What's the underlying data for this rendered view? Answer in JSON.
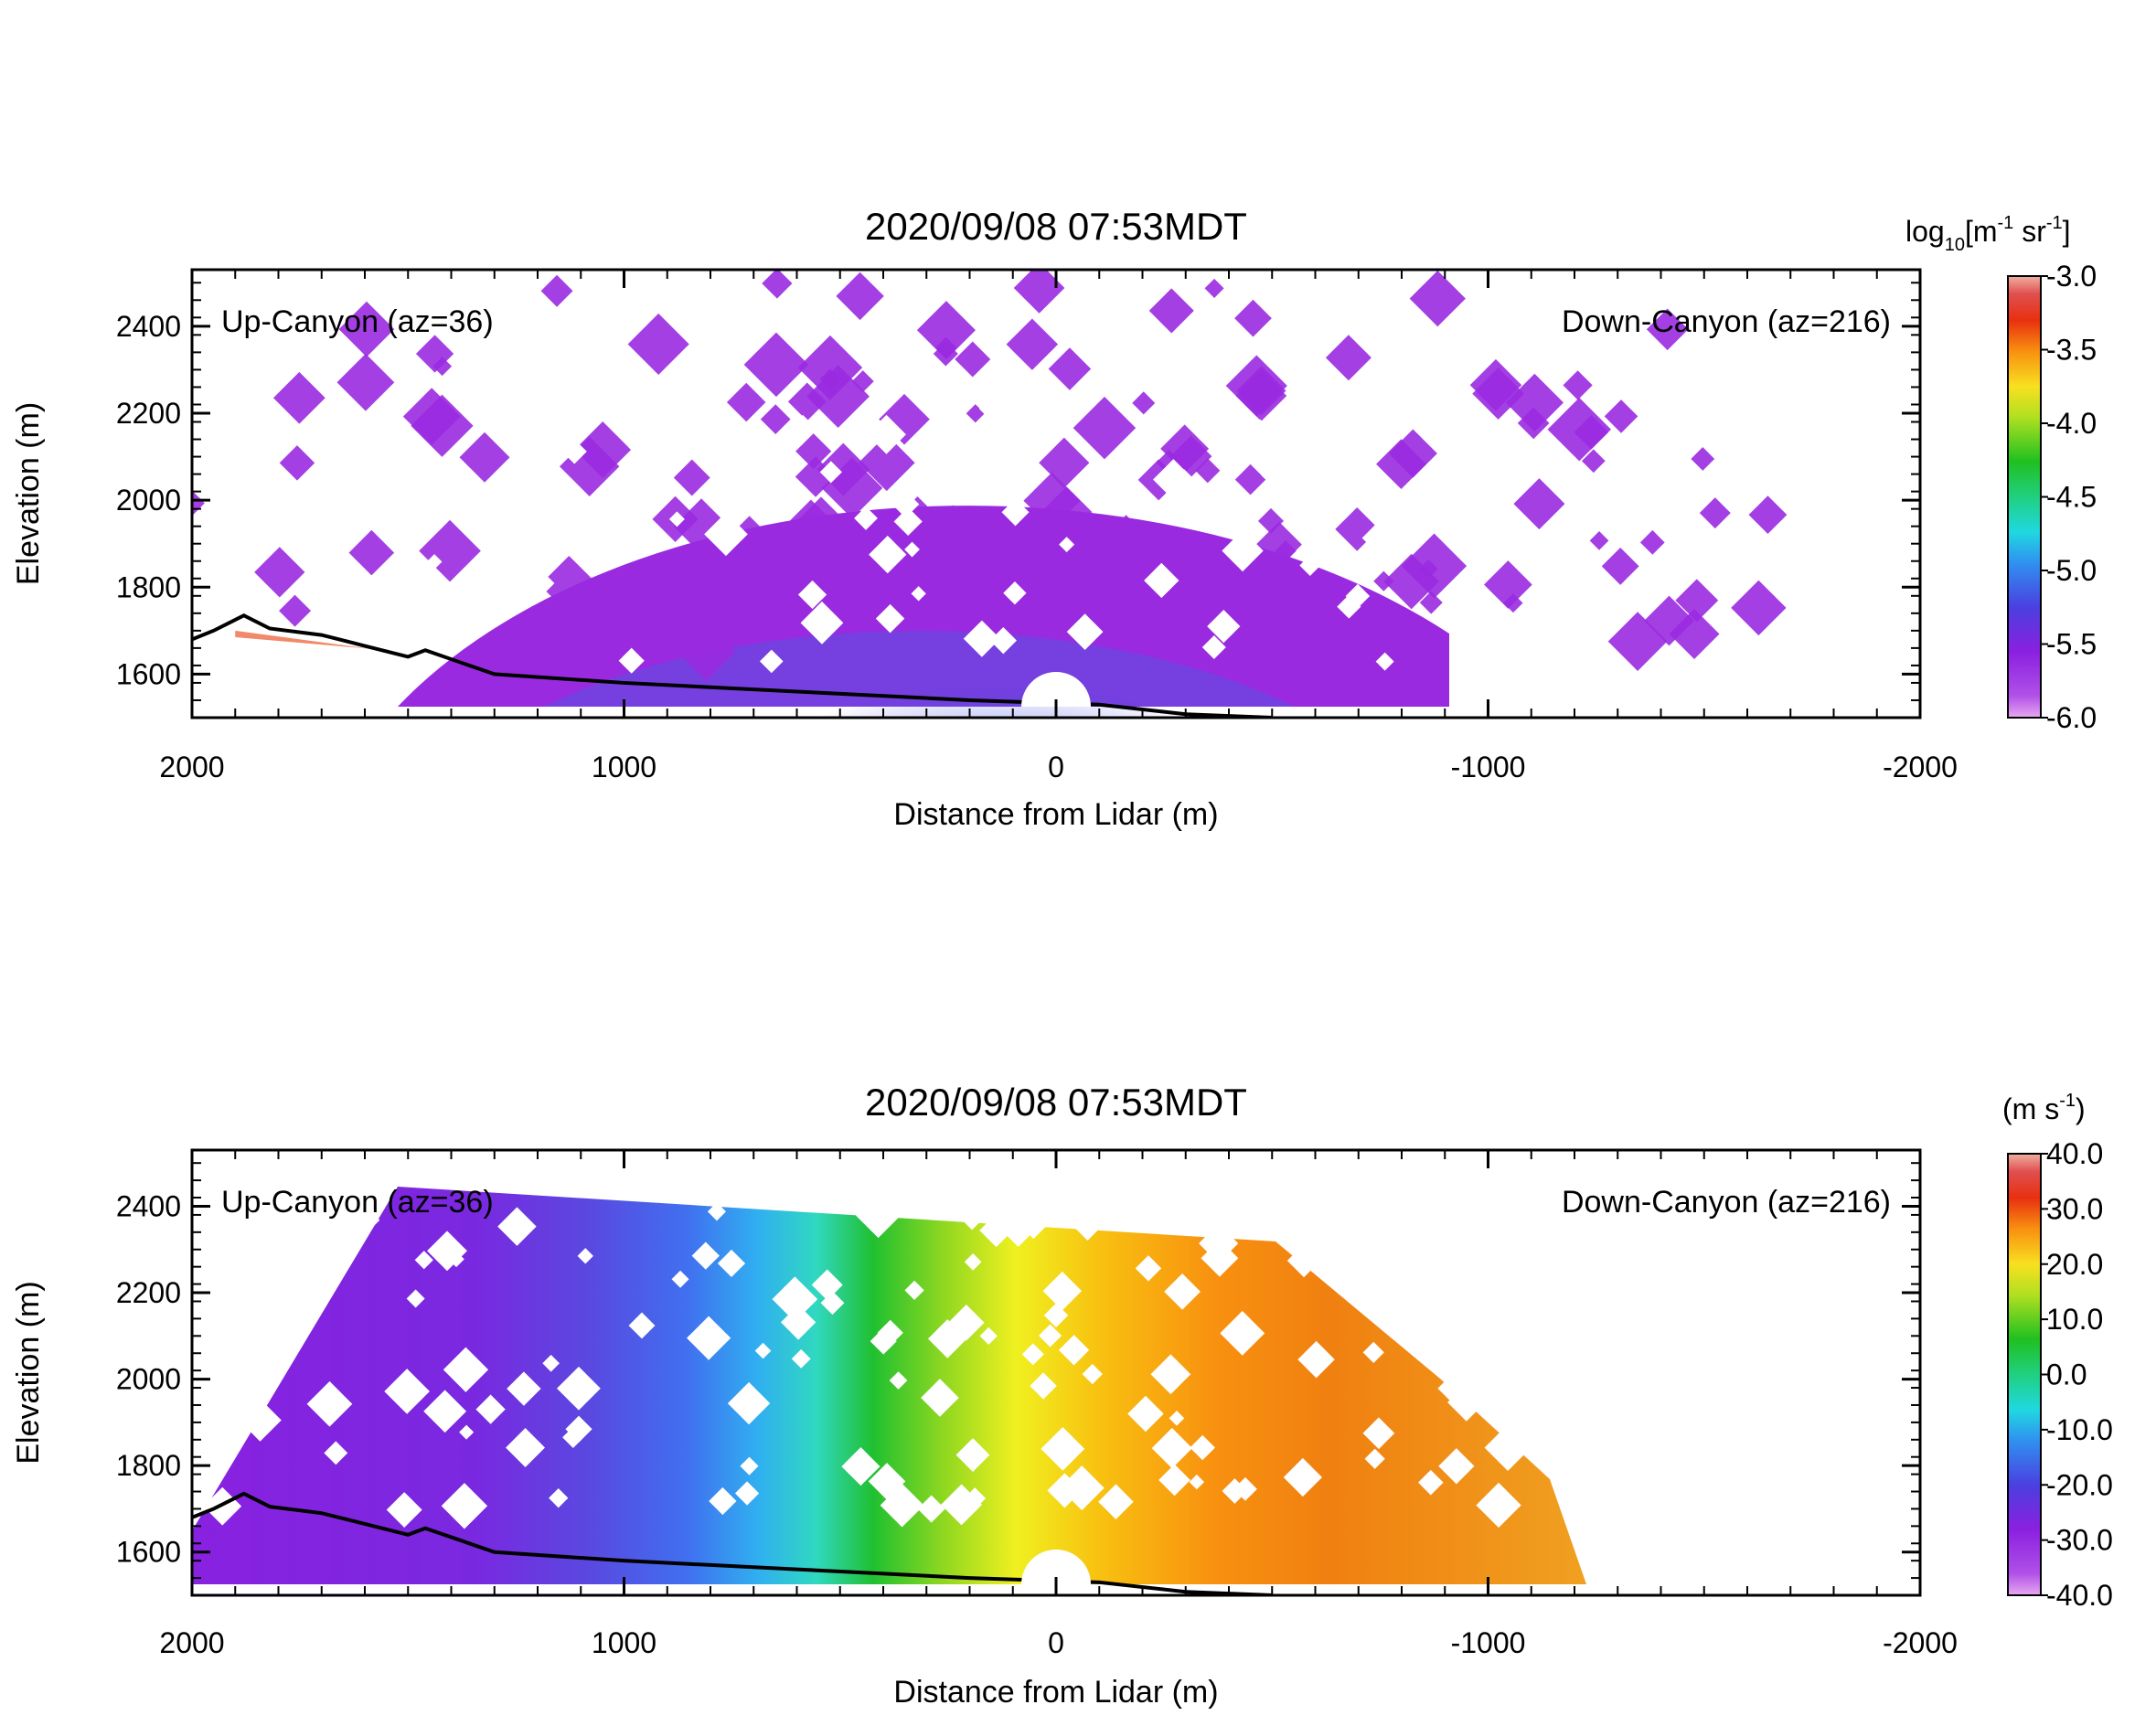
{
  "chart_data": [
    {
      "type": "heatmap",
      "title": "2020/09/08 07:53MDT",
      "xlabel": "Distance from Lidar (m)",
      "ylabel": "Elevation (m)",
      "xlim": [
        2000,
        -2000
      ],
      "ylim": [
        1500,
        2530
      ],
      "x_ticks": [
        "2000",
        "1000",
        "0",
        "-1000",
        "-2000"
      ],
      "x_tick_values": [
        2000,
        1000,
        0,
        -1000,
        -2000
      ],
      "y_ticks": [
        "1600",
        "1800",
        "2000",
        "2200",
        "2400"
      ],
      "y_tick_values": [
        1600,
        1800,
        2000,
        2200,
        2400
      ],
      "annotations": [
        "Up-Canyon (az=36)",
        "Down-Canyon (az=216)"
      ],
      "colorbar": {
        "unit_base": "log",
        "unit_sub": "10",
        "unit_open": "[m",
        "unit_exp1": "-1",
        "unit_mid": " sr",
        "unit_exp2": "-1",
        "unit_close": "]",
        "range": [
          -6.0,
          -3.0
        ],
        "ticks": [
          "-3.0",
          "-3.5",
          "-4.0",
          "-4.5",
          "-5.0",
          "-5.5",
          "-6.0"
        ],
        "tick_values": [
          -3.0,
          -3.5,
          -4.0,
          -4.5,
          -5.0,
          -5.5,
          -6.0
        ]
      },
      "field": "backscatter",
      "colors": {
        "low": "#9a2ae0",
        "mid": "#5a50e0",
        "near": "#38c8e8",
        "high": "#f08a6a"
      }
    },
    {
      "type": "heatmap",
      "title": "2020/09/08 07:53MDT",
      "xlabel": "Distance from Lidar (m)",
      "ylabel": "Elevation (m)",
      "xlim": [
        2000,
        -2000
      ],
      "ylim": [
        1500,
        2530
      ],
      "x_ticks": [
        "2000",
        "1000",
        "0",
        "-1000",
        "-2000"
      ],
      "x_tick_values": [
        2000,
        1000,
        0,
        -1000,
        -2000
      ],
      "y_ticks": [
        "1600",
        "1800",
        "2000",
        "2200",
        "2400"
      ],
      "y_tick_values": [
        1600,
        1800,
        2000,
        2200,
        2400
      ],
      "annotations": [
        "Up-Canyon (az=36)",
        "Down-Canyon (az=216)"
      ],
      "colorbar": {
        "unit_base": "(m s",
        "unit_exp1": "-1",
        "unit_close": ")",
        "range": [
          -40.0,
          40.0
        ],
        "ticks": [
          "40.0",
          "30.0",
          "20.0",
          "10.0",
          "0.0",
          "-10.0",
          "-20.0",
          "-30.0",
          "-40.0"
        ],
        "tick_values": [
          40,
          30,
          20,
          10,
          0,
          -10,
          -20,
          -30,
          -40
        ]
      },
      "field": "radial_velocity"
    }
  ]
}
